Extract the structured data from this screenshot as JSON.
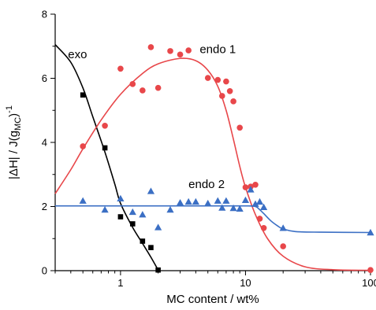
{
  "chart_data": {
    "type": "scatter",
    "x_scale": "log",
    "xlabel": "MC content / wt%",
    "ylabel_main": "|ΔH| / J(g",
    "ylabel_sub": "MC",
    "ylabel_tail": ")",
    "ylabel_sup": "-1",
    "xlim": [
      0.3,
      100
    ],
    "ylim": [
      0,
      8
    ],
    "x_ticks": [
      {
        "value": 1,
        "label": "1"
      },
      {
        "value": 10,
        "label": "10"
      },
      {
        "value": 100,
        "label": "100"
      }
    ],
    "y_ticks": [
      {
        "value": 0,
        "label": "0"
      },
      {
        "value": 2,
        "label": "2"
      },
      {
        "value": 4,
        "label": "4"
      },
      {
        "value": 6,
        "label": "6"
      },
      {
        "value": 8,
        "label": "8"
      }
    ],
    "series": [
      {
        "name": "exo",
        "color": "#000000",
        "marker": "square",
        "points": [
          {
            "x": 0.5,
            "y": 5.48
          },
          {
            "x": 0.75,
            "y": 3.83
          },
          {
            "x": 1.0,
            "y": 1.68
          },
          {
            "x": 1.25,
            "y": 1.46
          },
          {
            "x": 1.5,
            "y": 0.92
          },
          {
            "x": 1.75,
            "y": 0.72
          },
          {
            "x": 2.0,
            "y": 0.02
          }
        ],
        "fit": [
          {
            "x": 0.3,
            "y": 7.05
          },
          {
            "x": 0.4,
            "y": 6.5
          },
          {
            "x": 0.5,
            "y": 5.7
          },
          {
            "x": 0.6,
            "y": 4.8
          },
          {
            "x": 0.75,
            "y": 3.7
          },
          {
            "x": 0.9,
            "y": 2.7
          },
          {
            "x": 1.0,
            "y": 2.1
          },
          {
            "x": 1.25,
            "y": 1.35
          },
          {
            "x": 1.5,
            "y": 0.85
          },
          {
            "x": 1.75,
            "y": 0.42
          },
          {
            "x": 2.0,
            "y": 0.02
          }
        ]
      },
      {
        "name": "endo 1",
        "color": "#e8474a",
        "marker": "circle",
        "points": [
          {
            "x": 0.5,
            "y": 3.88
          },
          {
            "x": 0.75,
            "y": 4.52
          },
          {
            "x": 1.0,
            "y": 6.3
          },
          {
            "x": 1.25,
            "y": 5.82
          },
          {
            "x": 1.5,
            "y": 5.62
          },
          {
            "x": 1.75,
            "y": 6.97
          },
          {
            "x": 2.0,
            "y": 5.7
          },
          {
            "x": 2.5,
            "y": 6.85
          },
          {
            "x": 3.0,
            "y": 6.74
          },
          {
            "x": 3.5,
            "y": 6.87
          },
          {
            "x": 5.0,
            "y": 6.01
          },
          {
            "x": 6.0,
            "y": 5.95
          },
          {
            "x": 6.5,
            "y": 5.45
          },
          {
            "x": 7.0,
            "y": 5.9
          },
          {
            "x": 7.5,
            "y": 5.6
          },
          {
            "x": 8.0,
            "y": 5.28
          },
          {
            "x": 9.0,
            "y": 4.46
          },
          {
            "x": 10.0,
            "y": 2.6
          },
          {
            "x": 11.0,
            "y": 2.62
          },
          {
            "x": 12.0,
            "y": 2.68
          },
          {
            "x": 13.0,
            "y": 1.62
          },
          {
            "x": 14.0,
            "y": 1.33
          },
          {
            "x": 20.0,
            "y": 0.76
          },
          {
            "x": 100.0,
            "y": 0.02
          }
        ],
        "fit": [
          {
            "x": 0.3,
            "y": 2.4
          },
          {
            "x": 0.4,
            "y": 3.15
          },
          {
            "x": 0.5,
            "y": 3.8
          },
          {
            "x": 0.7,
            "y": 4.7
          },
          {
            "x": 1.0,
            "y": 5.5
          },
          {
            "x": 1.5,
            "y": 6.15
          },
          {
            "x": 2.0,
            "y": 6.45
          },
          {
            "x": 3.0,
            "y": 6.62
          },
          {
            "x": 4.0,
            "y": 6.55
          },
          {
            "x": 5.0,
            "y": 6.25
          },
          {
            "x": 6.0,
            "y": 5.75
          },
          {
            "x": 7.0,
            "y": 5.0
          },
          {
            "x": 8.0,
            "y": 4.1
          },
          {
            "x": 9.0,
            "y": 3.25
          },
          {
            "x": 10.0,
            "y": 2.6
          },
          {
            "x": 12.0,
            "y": 1.75
          },
          {
            "x": 15.0,
            "y": 1.0
          },
          {
            "x": 20.0,
            "y": 0.45
          },
          {
            "x": 30.0,
            "y": 0.12
          },
          {
            "x": 50.0,
            "y": 0.03
          },
          {
            "x": 100.0,
            "y": 0.01
          }
        ]
      },
      {
        "name": "endo 2",
        "color": "#3b6fc4",
        "marker": "triangle",
        "points": [
          {
            "x": 0.5,
            "y": 2.18
          },
          {
            "x": 0.75,
            "y": 1.9
          },
          {
            "x": 1.0,
            "y": 2.25
          },
          {
            "x": 1.25,
            "y": 1.83
          },
          {
            "x": 1.5,
            "y": 1.75
          },
          {
            "x": 1.75,
            "y": 2.48
          },
          {
            "x": 2.0,
            "y": 1.35
          },
          {
            "x": 2.5,
            "y": 1.9
          },
          {
            "x": 3.0,
            "y": 2.12
          },
          {
            "x": 3.5,
            "y": 2.15
          },
          {
            "x": 4.0,
            "y": 2.15
          },
          {
            "x": 5.0,
            "y": 2.1
          },
          {
            "x": 6.0,
            "y": 2.18
          },
          {
            "x": 6.5,
            "y": 1.96
          },
          {
            "x": 7.0,
            "y": 2.18
          },
          {
            "x": 8.0,
            "y": 1.95
          },
          {
            "x": 9.0,
            "y": 1.93
          },
          {
            "x": 10.0,
            "y": 2.2
          },
          {
            "x": 11.0,
            "y": 2.53
          },
          {
            "x": 12.0,
            "y": 2.08
          },
          {
            "x": 13.0,
            "y": 2.15
          },
          {
            "x": 14.0,
            "y": 1.98
          },
          {
            "x": 20.0,
            "y": 1.33
          },
          {
            "x": 100.0,
            "y": 1.19
          }
        ],
        "fit": [
          {
            "x": 0.3,
            "y": 2.02
          },
          {
            "x": 1.0,
            "y": 2.02
          },
          {
            "x": 5.0,
            "y": 2.02
          },
          {
            "x": 10.0,
            "y": 2.02
          },
          {
            "x": 12.0,
            "y": 2.0
          },
          {
            "x": 13.0,
            "y": 1.9
          },
          {
            "x": 14.0,
            "y": 1.78
          },
          {
            "x": 16.0,
            "y": 1.55
          },
          {
            "x": 18.0,
            "y": 1.4
          },
          {
            "x": 20.0,
            "y": 1.3
          },
          {
            "x": 25.0,
            "y": 1.22
          },
          {
            "x": 40.0,
            "y": 1.2
          },
          {
            "x": 100.0,
            "y": 1.19
          }
        ]
      }
    ],
    "annotations": [
      {
        "series": "exo",
        "text": "exo",
        "x": 0.38,
        "y": 6.62
      },
      {
        "series": "endo 1",
        "text": "endo 1",
        "x": 4.3,
        "y": 6.78
      },
      {
        "series": "endo 2",
        "text": "endo 2",
        "x": 3.5,
        "y": 2.58
      }
    ],
    "grid": false,
    "legend": "none"
  }
}
